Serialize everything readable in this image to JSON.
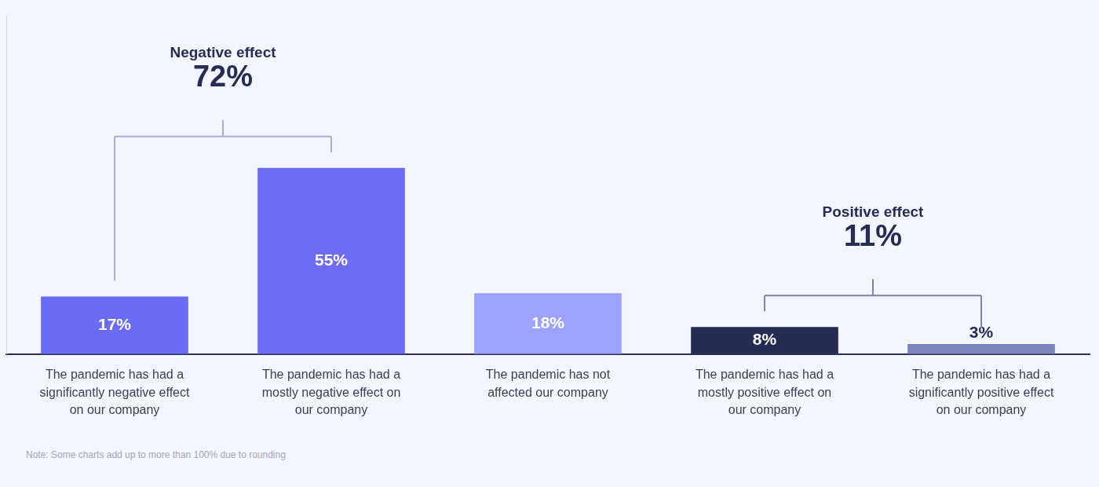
{
  "chart_data": {
    "type": "bar",
    "categories": [
      "The pandemic has had a significantly negative effect on our company",
      "The pandemic has had a mostly negative effect on our company",
      "The pandemic has not affected our company",
      "The pandemic has had a mostly positive effect on our company",
      "The pandemic has had a significantly positive effect on our company"
    ],
    "values": [
      17,
      55,
      18,
      8,
      3
    ],
    "value_labels": [
      "17%",
      "55%",
      "18%",
      "8%",
      "3%"
    ],
    "colors": [
      "#6b6bf5",
      "#6e6cf6",
      "#9da2fd",
      "#262d55",
      "#7b84bd"
    ],
    "ylim": [
      0,
      100
    ],
    "yticks": [],
    "grid": false,
    "data_labels": true,
    "tick_labels": "x",
    "annotations": [
      {
        "text": "Negative effect",
        "label": "72%",
        "bars": [
          0,
          1
        ]
      },
      {
        "text": "Positive effect",
        "label": "11%",
        "bars": [
          3,
          4
        ]
      }
    ],
    "note": "Note: Some charts add up to more than 100% due to rounding"
  }
}
